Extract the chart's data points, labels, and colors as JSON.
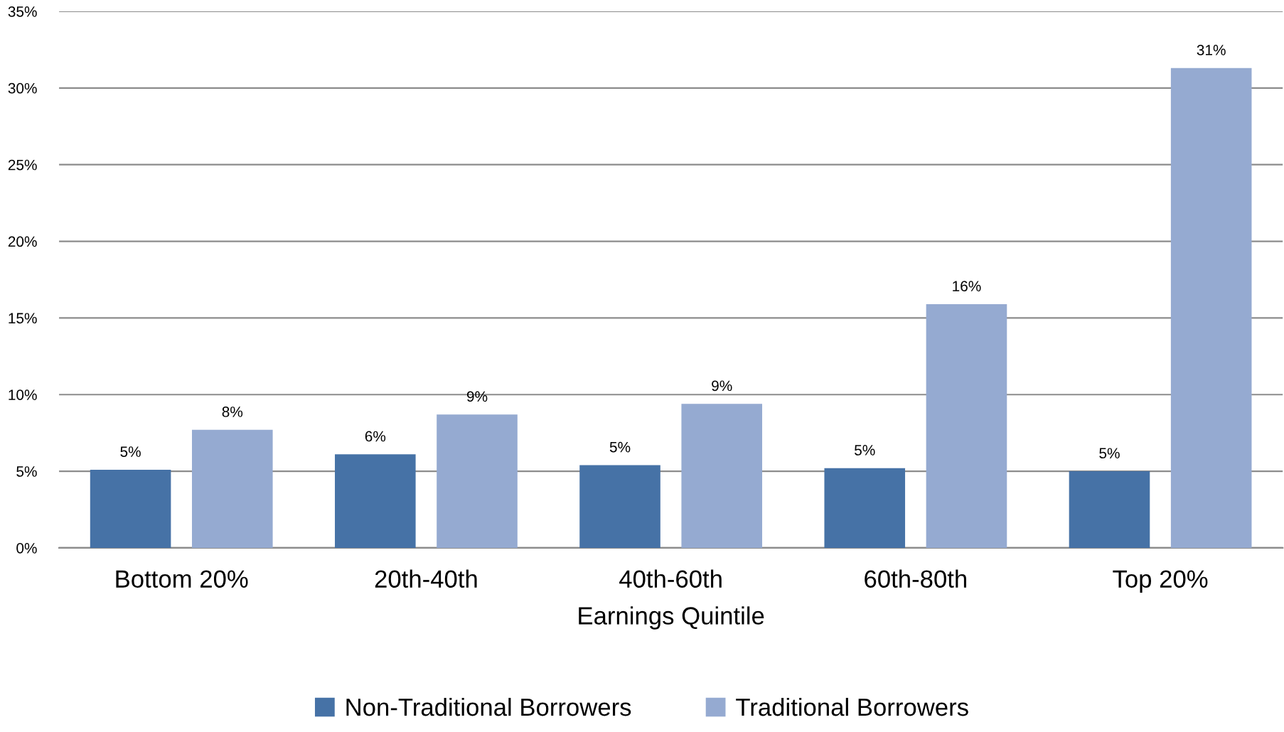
{
  "chart_data": {
    "type": "bar",
    "xlabel": "Earnings Quintile",
    "categories": [
      "Bottom 20%",
      "20th-40th",
      "40th-60th",
      "60th-80th",
      "Top 20%"
    ],
    "series": [
      {
        "name": "Non-Traditional Borrowers",
        "color": "#4672a6",
        "values": [
          5.1,
          6.1,
          5.4,
          5.2,
          5.0
        ],
        "value_labels": [
          "5%",
          "6%",
          "5%",
          "5%",
          "5%"
        ]
      },
      {
        "name": "Traditional Borrowers",
        "color": "#95aad1",
        "values": [
          7.7,
          8.7,
          9.4,
          15.9,
          31.3
        ],
        "value_labels": [
          "8%",
          "9%",
          "9%",
          "16%",
          "31%"
        ]
      }
    ],
    "ylim": [
      0,
      35
    ],
    "yticks": [
      {
        "value": 0,
        "label": "0%"
      },
      {
        "value": 5,
        "label": "5%"
      },
      {
        "value": 10,
        "label": "10%"
      },
      {
        "value": 15,
        "label": "15%"
      },
      {
        "value": 20,
        "label": "20%"
      },
      {
        "value": 25,
        "label": "25%"
      },
      {
        "value": 30,
        "label": "30%"
      },
      {
        "value": 35,
        "label": "35%"
      }
    ],
    "grid": "y",
    "legend": "bottom"
  }
}
